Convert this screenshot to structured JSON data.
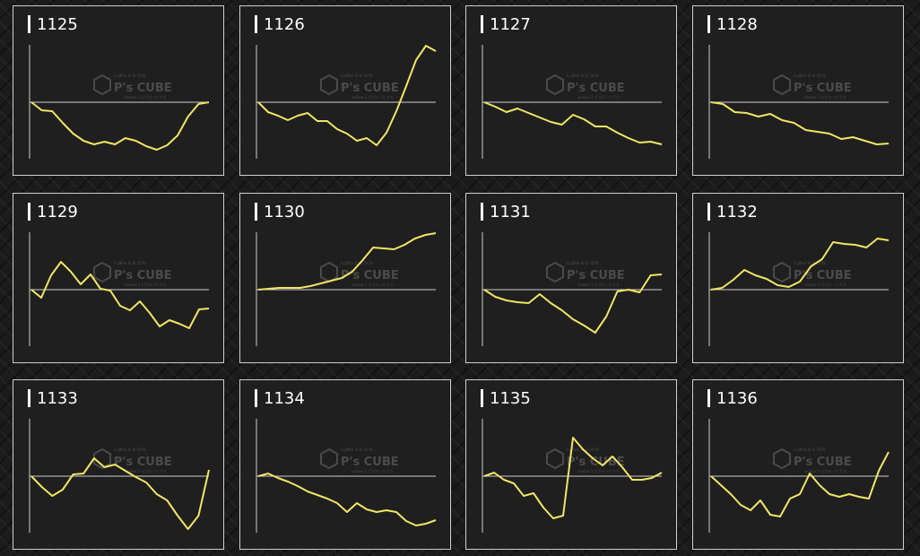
{
  "colors": {
    "line": "#f2e566",
    "axis": "#cfcfcf",
    "panel_bg": "#1f1f1f",
    "title": "#ffffff"
  },
  "watermark": {
    "brand": "P's CUBE",
    "small_top": "Fujifilm Sl Sl 1978",
    "small_bottom": "osakas 1 ピガモノビクス"
  },
  "panels": [
    {
      "id": "1125",
      "values": [
        0,
        -9,
        -10,
        -23,
        -35,
        -43,
        -47,
        -44,
        -47,
        -40,
        -43,
        -49,
        -53,
        -48,
        -37,
        -16,
        -2,
        0
      ]
    },
    {
      "id": "1126",
      "values": [
        0,
        -11,
        -15,
        -20,
        -15,
        -12,
        -21,
        -21,
        -30,
        -35,
        -43,
        -40,
        -48,
        -34,
        -10,
        18,
        47,
        63,
        57
      ]
    },
    {
      "id": "1127",
      "values": [
        0,
        -5,
        -11,
        -7,
        -12,
        -17,
        -22,
        -25,
        -14,
        -19,
        -27,
        -27,
        -34,
        -40,
        -45,
        -44,
        -47
      ]
    },
    {
      "id": "1128",
      "values": [
        0,
        -2,
        -11,
        -12,
        -16,
        -13,
        -20,
        -23,
        -31,
        -33,
        -35,
        -41,
        -39,
        -43,
        -47,
        -46
      ]
    },
    {
      "id": "1129",
      "values": [
        0,
        -9,
        16,
        31,
        20,
        6,
        17,
        1,
        -1,
        -18,
        -23,
        -13,
        -26,
        -41,
        -34,
        -38,
        -43,
        -22,
        -21
      ]
    },
    {
      "id": "1130",
      "values": [
        0,
        1,
        2,
        2,
        2,
        4,
        7,
        10,
        13,
        20,
        33,
        47,
        46,
        45,
        50,
        57,
        61,
        63
      ]
    },
    {
      "id": "1131",
      "values": [
        0,
        -8,
        -12,
        -14,
        -15,
        -5,
        -15,
        -23,
        -33,
        -40,
        -48,
        -30,
        -2,
        0,
        -3,
        16,
        17
      ]
    },
    {
      "id": "1132",
      "values": [
        0,
        2,
        11,
        22,
        16,
        12,
        5,
        3,
        9,
        26,
        34,
        53,
        51,
        50,
        47,
        57,
        55
      ]
    },
    {
      "id": "1133",
      "values": [
        0,
        -12,
        -22,
        -15,
        2,
        3,
        20,
        10,
        13,
        6,
        -1,
        -7,
        -20,
        -27,
        -44,
        -59,
        -44,
        7
      ]
    },
    {
      "id": "1134",
      "values": [
        0,
        3,
        -2,
        -6,
        -11,
        -17,
        -21,
        -25,
        -30,
        -40,
        -30,
        -37,
        -40,
        -38,
        -40,
        -50,
        -55,
        -53,
        -49
      ]
    },
    {
      "id": "1135",
      "values": [
        0,
        4,
        -4,
        -8,
        -22,
        -19,
        -35,
        -47,
        -44,
        43,
        30,
        20,
        12,
        22,
        10,
        -4,
        -4,
        -2,
        4
      ]
    },
    {
      "id": "1136",
      "values": [
        0,
        -10,
        -20,
        -32,
        -38,
        -27,
        -43,
        -45,
        -25,
        -20,
        3,
        -10,
        -20,
        -23,
        -20,
        -23,
        -25,
        6,
        27
      ]
    }
  ]
}
